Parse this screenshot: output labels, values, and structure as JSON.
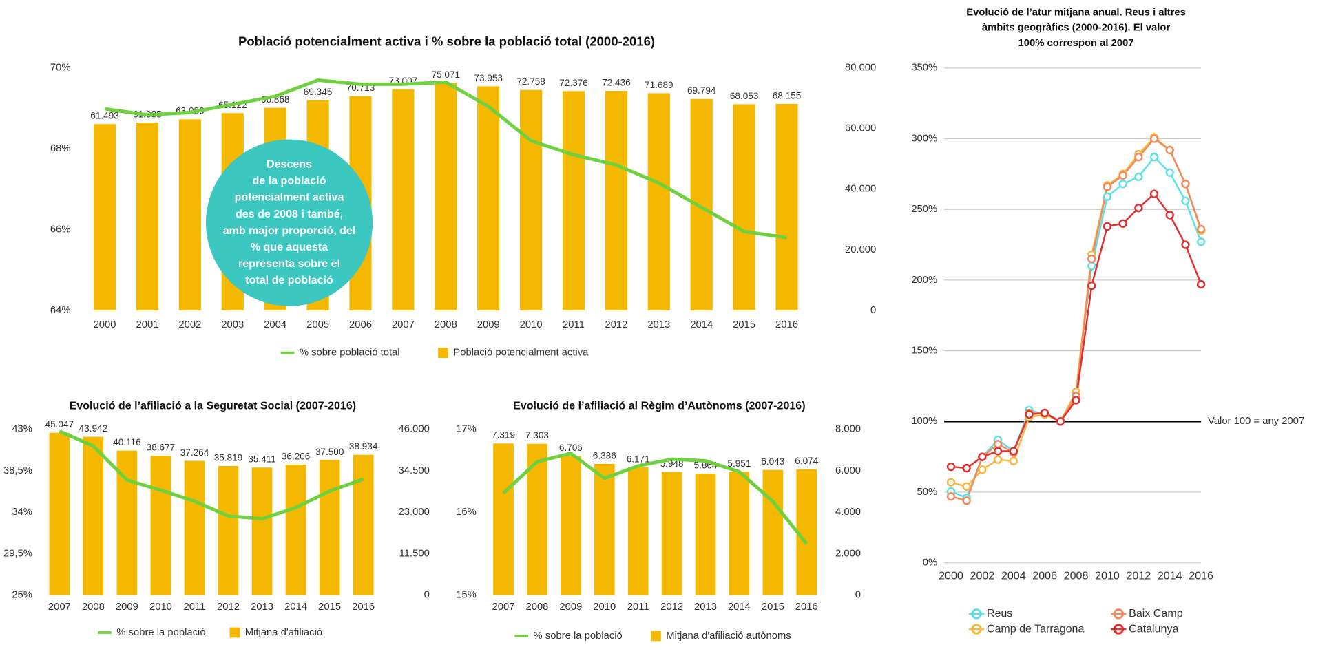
{
  "chart_data": [
    {
      "type": "combo",
      "title": "Població potencialment activa i % sobre la població total (2000-2016)",
      "categories": [
        "2000",
        "2001",
        "2002",
        "2003",
        "2004",
        "2005",
        "2006",
        "2007",
        "2008",
        "2009",
        "2010",
        "2011",
        "2012",
        "2013",
        "2014",
        "2015",
        "2016"
      ],
      "series": [
        {
          "name": "% sobre població total",
          "type": "line",
          "color": "#6fd13f",
          "values": [
            68.99,
            68.84,
            68.9,
            69.1,
            69.3,
            69.7,
            69.6,
            69.6,
            69.65,
            69.05,
            68.2,
            67.85,
            67.6,
            67.15,
            66.55,
            65.95,
            65.8
          ]
        },
        {
          "name": "Població potencialment activa",
          "type": "bar",
          "color": "#f5b800",
          "axis": "y2",
          "values": [
            61493,
            61985,
            63080,
            65122,
            66868,
            69345,
            70713,
            73007,
            75071,
            73953,
            72758,
            72376,
            72436,
            71689,
            69794,
            68053,
            68155
          ],
          "value_labels": [
            "61.493",
            "61.985",
            "63.080",
            "65.122",
            "66.868",
            "69.345",
            "70.713",
            "73.007",
            "75.071",
            "73.953",
            "72.758",
            "72.376",
            "72.436",
            "71.689",
            "69.794",
            "68.053",
            "68.155"
          ]
        }
      ],
      "ylim": [
        64,
        70
      ],
      "yticks": [
        {
          "value": 64,
          "label": "64%"
        },
        {
          "value": 66,
          "label": "66%"
        },
        {
          "value": 68,
          "label": "68%"
        },
        {
          "value": 70,
          "label": "70%"
        }
      ],
      "y2lim": [
        0,
        80000
      ],
      "y2ticks": [
        0,
        {
          "value": 20000,
          "label": "20.000"
        },
        {
          "value": 40000,
          "label": "40.000"
        },
        {
          "value": 60000,
          "label": "60.000"
        },
        {
          "value": 80000,
          "label": "80.000"
        }
      ],
      "grid": false,
      "annotation": [
        "Descens",
        "de la població",
        "potencialment activa",
        "des de 2008 i també,",
        "amb major proporció, del",
        "% que aquesta",
        "representa sobre el",
        "total de població"
      ],
      "annotation_color": "#3cc8c0"
    },
    {
      "type": "combo",
      "title": "Evolució de l’afiliació a la Seguretat Social (2007-2016)",
      "categories": [
        "2007",
        "2008",
        "2009",
        "2010",
        "2011",
        "2012",
        "2013",
        "2014",
        "2015",
        "2016"
      ],
      "series": [
        {
          "name": "% sobre la població",
          "type": "line",
          "color": "#6fd13f",
          "values": [
            42.8,
            41.2,
            37.5,
            36.4,
            35.2,
            33.6,
            33.3,
            34.5,
            36.3,
            37.6
          ]
        },
        {
          "name": "Mitjana d'afiliació",
          "type": "bar",
          "color": "#f5b800",
          "axis": "y2",
          "values": [
            45047,
            43942,
            40116,
            38677,
            37264,
            35819,
            35411,
            36206,
            37500,
            38934
          ],
          "value_labels": [
            "45.047",
            "43.942",
            "40.116",
            "38.677",
            "37.264",
            "35.819",
            "35.411",
            "36.206",
            "37.500",
            "38.934"
          ]
        }
      ],
      "ylim": [
        25,
        43
      ],
      "yticks": [
        {
          "value": 25,
          "label": "25%"
        },
        {
          "value": 29.5,
          "label": "29,5%"
        },
        {
          "value": 34,
          "label": "34%"
        },
        {
          "value": 38.5,
          "label": "38,5%"
        },
        {
          "value": 43,
          "label": "43%"
        }
      ],
      "y2lim": [
        0,
        46000
      ],
      "y2ticks": [
        0,
        {
          "value": 11500,
          "label": "11.500"
        },
        {
          "value": 23000,
          "label": "23.000"
        },
        {
          "value": 34500,
          "label": "34.500"
        },
        {
          "value": 46000,
          "label": "46.000"
        }
      ],
      "grid": false
    },
    {
      "type": "combo",
      "title": "Evolució de l’afiliació al Règim d’Autònoms (2007-2016)",
      "categories": [
        "2007",
        "2008",
        "2009",
        "2010",
        "2011",
        "2012",
        "2013",
        "2014",
        "2015",
        "2016"
      ],
      "series": [
        {
          "name": "% sobre la població",
          "type": "line",
          "color": "#6fd13f",
          "values": [
            16.23,
            16.61,
            16.71,
            16.41,
            16.56,
            16.64,
            16.62,
            16.49,
            16.13,
            15.62
          ]
        },
        {
          "name": "Mitjana d'afiliació autònoms",
          "type": "bar",
          "color": "#f5b800",
          "axis": "y2",
          "values": [
            7319,
            7303,
            6706,
            6336,
            6171,
            5948,
            5864,
            5951,
            6043,
            6074
          ],
          "value_labels": [
            "7.319",
            "7.303",
            "6.706",
            "6.336",
            "6.171",
            "5.948",
            "5.864",
            "5.951",
            "6.043",
            "6.074"
          ]
        }
      ],
      "ylim": [
        15,
        17
      ],
      "yticks": [
        {
          "value": 15,
          "label": "15%"
        },
        {
          "value": 16,
          "label": "16%"
        },
        {
          "value": 17,
          "label": "17%"
        }
      ],
      "y2lim": [
        0,
        8000
      ],
      "y2ticks": [
        0,
        {
          "value": 2000,
          "label": "2.000"
        },
        {
          "value": 4000,
          "label": "4.000"
        },
        {
          "value": 6000,
          "label": "6.000"
        },
        {
          "value": 8000,
          "label": "8.000"
        }
      ],
      "grid": false
    },
    {
      "type": "line",
      "title": [
        "Evolució de l’atur mitjana anual. Reus i altres",
        "àmbits geogràfics (2000-2016). El valor",
        "100% correspon al 2007"
      ],
      "x": [
        2000,
        2001,
        2002,
        2003,
        2004,
        2005,
        2006,
        2007,
        2008,
        2009,
        2010,
        2011,
        2012,
        2013,
        2014,
        2015,
        2016
      ],
      "xlim": [
        2000,
        2016
      ],
      "xticks": [
        2000,
        2002,
        2004,
        2006,
        2008,
        2010,
        2012,
        2014,
        2016
      ],
      "ylim": [
        0,
        350
      ],
      "yticks": [
        {
          "value": 0,
          "label": "0%"
        },
        {
          "value": 50,
          "label": "50%"
        },
        {
          "value": 100,
          "label": "100%"
        },
        {
          "value": 150,
          "label": "150%"
        },
        {
          "value": 200,
          "label": "200%"
        },
        {
          "value": 250,
          "label": "250%"
        },
        {
          "value": 300,
          "label": "300%"
        },
        {
          "value": 350,
          "label": "350%"
        }
      ],
      "grid": true,
      "reference": {
        "value": 100,
        "label": "Valor 100 = any 2007"
      },
      "series": [
        {
          "name": "Reus",
          "color": "#5ee0e6",
          "values": [
            50.5,
            46,
            75,
            87,
            79,
            108,
            105,
            100,
            121,
            210,
            259,
            268,
            273,
            287,
            276,
            256,
            227
          ]
        },
        {
          "name": "Camp de Tarragona",
          "color": "#f5b942",
          "values": [
            57,
            54,
            66,
            73,
            72,
            103,
            105,
            100,
            121,
            218,
            267,
            275,
            289,
            301,
            292,
            268,
            235
          ]
        },
        {
          "name": "Baix Camp",
          "color": "#f08a5d",
          "values": [
            47,
            44,
            75,
            84,
            78,
            106,
            106,
            100,
            118,
            215,
            266,
            274,
            287,
            300,
            292,
            268,
            236
          ]
        },
        {
          "name": "Catalunya",
          "color": "#e03030",
          "values": [
            68,
            67,
            75,
            79,
            79,
            105,
            106,
            100,
            115,
            196,
            238,
            240,
            251,
            261,
            246,
            225,
            197
          ]
        }
      ]
    }
  ]
}
